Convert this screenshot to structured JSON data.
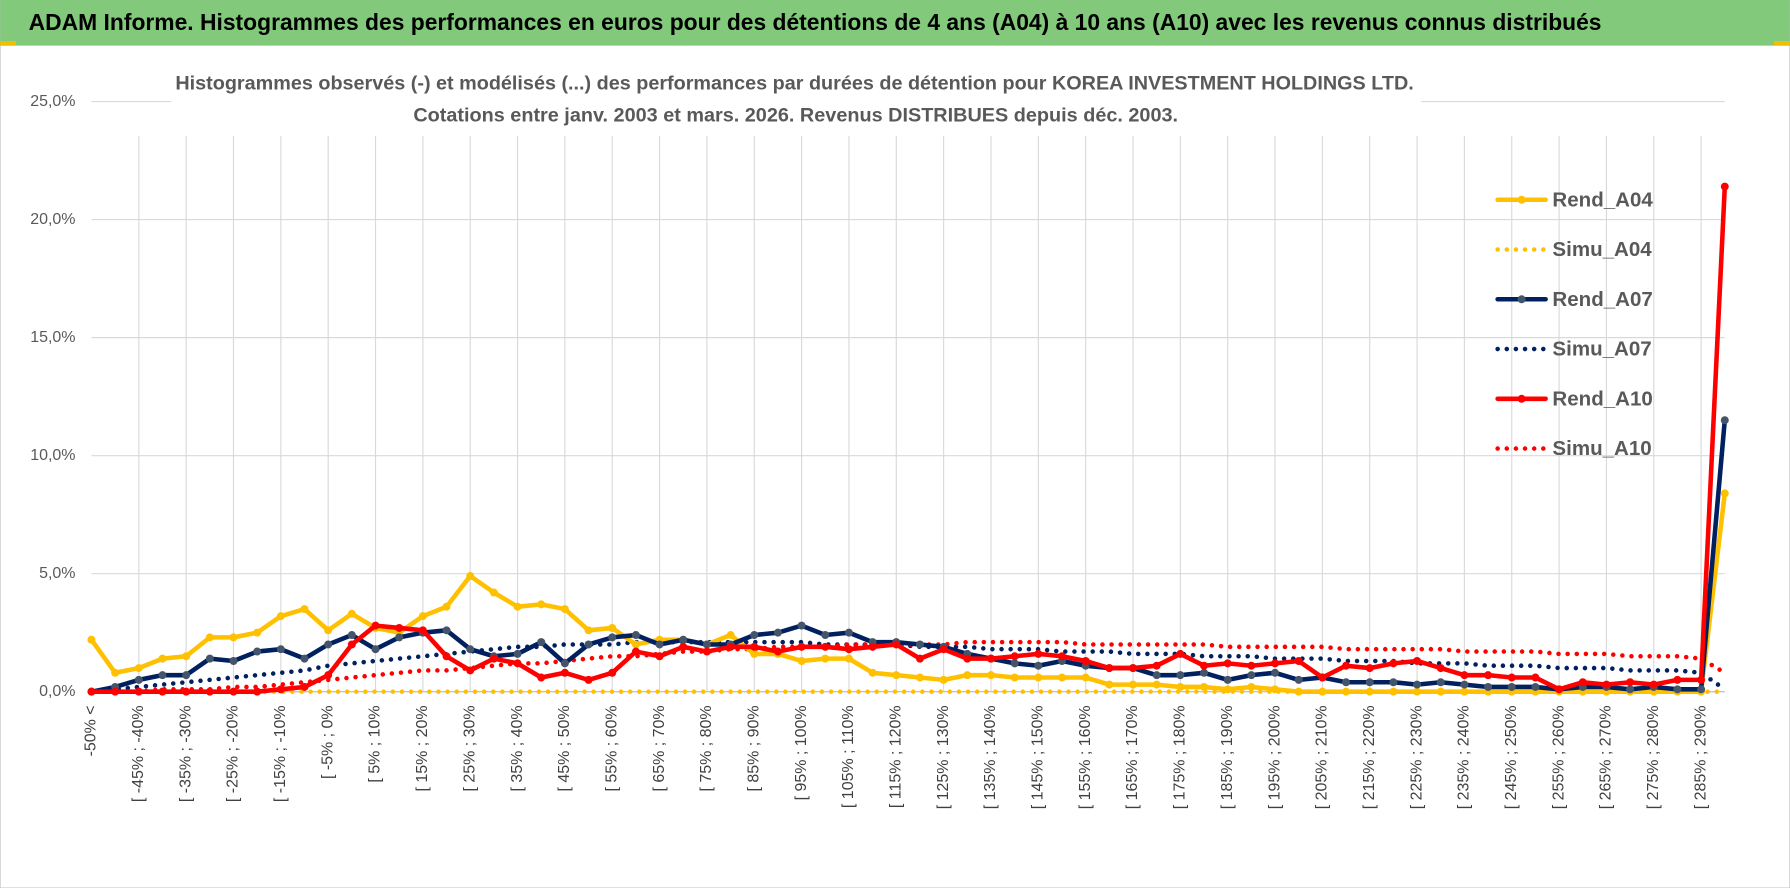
{
  "header": {
    "title": "ADAM Informe. Histogrammes des performances en euros pour des détentions de 4 ans (A04) à 10 ans (A10) avec les revenus connus distribués"
  },
  "chart_data": {
    "type": "line",
    "title": "Histogrammes observés (-) et modélisés (...) des performances par durées de détention pour KOREA INVESTMENT HOLDINGS LTD.",
    "subtitle": "Cotations entre janv. 2003 et mars. 2026.  Revenus DISTRIBUES depuis déc. 2003.",
    "categories": [
      "-50% <",
      null,
      "[ -45% ; -40%",
      null,
      "[ -35% ; -30%",
      null,
      "[ -25% ; -20%",
      null,
      "[ -15% ; -10%",
      null,
      "[ -5% ; 0%",
      null,
      "[ 5% ; 10%",
      null,
      "[ 15% ; 20%",
      null,
      "[ 25% ; 30%",
      null,
      "[ 35% ; 40%",
      null,
      "[ 45% ; 50%",
      null,
      "[ 55% ; 60%",
      null,
      "[ 65% ; 70%",
      null,
      "[ 75% ; 80%",
      null,
      "[ 85% ; 90%",
      null,
      "[ 95% ; 100%",
      null,
      "[ 105% ; 110%",
      null,
      "[ 115% ; 120%",
      null,
      "[ 125% ; 130%",
      null,
      "[ 135% ; 140%",
      null,
      "[ 145% ; 150%",
      null,
      "[ 155% ; 160%",
      null,
      "[ 165% ; 170%",
      null,
      "[ 175% ; 180%",
      null,
      "[ 185% ; 190%",
      null,
      "[ 195% ; 200%",
      null,
      "[ 205% ; 210%",
      null,
      "[ 215% ; 220%",
      null,
      "[ 225% ; 230%",
      null,
      "[ 235% ; 240%",
      null,
      "[ 245% ; 250%",
      null,
      "[ 255% ; 260%",
      null,
      "[ 265% ; 270%",
      null,
      "[ 275% ; 280%",
      null,
      "[ 285% ; 290%",
      null
    ],
    "ylim": [
      0,
      25
    ],
    "yticks": [
      {
        "value": 0,
        "label": "0,0%"
      },
      {
        "value": 5,
        "label": "5,0%"
      },
      {
        "value": 10,
        "label": "10,0%"
      },
      {
        "value": 15,
        "label": "15,0%"
      },
      {
        "value": 20,
        "label": "20,0%"
      },
      {
        "value": 25,
        "label": "25,0%"
      }
    ],
    "grid": true,
    "legend": "right",
    "series": [
      {
        "name": "Rend_A04",
        "color": "#ffc000",
        "style": "solid",
        "markers": true,
        "values": [
          2.2,
          0.8,
          1.0,
          1.4,
          1.5,
          2.3,
          2.3,
          2.5,
          3.2,
          3.5,
          2.6,
          3.3,
          2.7,
          2.5,
          3.2,
          3.6,
          4.9,
          4.2,
          3.6,
          3.7,
          3.5,
          2.6,
          2.7,
          2.0,
          2.2,
          2.2,
          2.0,
          2.4,
          1.6,
          1.6,
          1.3,
          1.4,
          1.4,
          0.8,
          0.7,
          0.6,
          0.5,
          0.7,
          0.7,
          0.6,
          0.6,
          0.6,
          0.6,
          0.3,
          0.3,
          0.3,
          0.2,
          0.2,
          0.1,
          0.2,
          0.1,
          0,
          0,
          0,
          0,
          0,
          0,
          0,
          0,
          0,
          0,
          0,
          0,
          0,
          0,
          0,
          0,
          0,
          0,
          8.4
        ]
      },
      {
        "name": "Simu_A04",
        "color": "#ffc000",
        "style": "dotted",
        "markers": false,
        "values": [
          0,
          0,
          0,
          0,
          0,
          0,
          0,
          0,
          0,
          0,
          0,
          0,
          0,
          0,
          0,
          0,
          0,
          0,
          0,
          0,
          0,
          0,
          0,
          0,
          0,
          0,
          0,
          0,
          0,
          0,
          0,
          0,
          0,
          0,
          0,
          0,
          0,
          0,
          0,
          0,
          0,
          0,
          0,
          0,
          0,
          0,
          0,
          0,
          0,
          0,
          0,
          0,
          0,
          0,
          0,
          0,
          0,
          0,
          0,
          0,
          0,
          0,
          0,
          0,
          0,
          0,
          0,
          0,
          0,
          0
        ]
      },
      {
        "name": "Rend_A07",
        "color": "#002060",
        "style": "solid",
        "markers": true,
        "values": [
          0,
          0.2,
          0.5,
          0.7,
          0.7,
          1.4,
          1.3,
          1.7,
          1.8,
          1.4,
          2.0,
          2.4,
          1.8,
          2.3,
          2.5,
          2.6,
          1.8,
          1.5,
          1.6,
          2.1,
          1.2,
          2.0,
          2.3,
          2.4,
          2.0,
          2.2,
          2.0,
          2.0,
          2.4,
          2.5,
          2.8,
          2.4,
          2.5,
          2.1,
          2.1,
          2.0,
          1.9,
          1.6,
          1.4,
          1.2,
          1.1,
          1.3,
          1.1,
          1.0,
          1.0,
          0.7,
          0.7,
          0.8,
          0.5,
          0.7,
          0.8,
          0.5,
          0.6,
          0.4,
          0.4,
          0.4,
          0.3,
          0.4,
          0.3,
          0.2,
          0.2,
          0.2,
          0.1,
          0.2,
          0.2,
          0.1,
          0.2,
          0.1,
          0.1,
          11.5
        ]
      },
      {
        "name": "Simu_A07",
        "color": "#002060",
        "style": "dotted",
        "markers": false,
        "values": [
          0,
          0.1,
          0.2,
          0.3,
          0.4,
          0.5,
          0.6,
          0.7,
          0.8,
          0.9,
          1.1,
          1.2,
          1.3,
          1.4,
          1.5,
          1.6,
          1.7,
          1.8,
          1.9,
          1.9,
          2.0,
          2.0,
          2.0,
          2.1,
          2.1,
          2.1,
          2.1,
          2.1,
          2.1,
          2.1,
          2.1,
          2.0,
          2.0,
          2.0,
          2.0,
          1.9,
          1.9,
          1.9,
          1.8,
          1.8,
          1.8,
          1.7,
          1.7,
          1.7,
          1.6,
          1.6,
          1.6,
          1.5,
          1.5,
          1.5,
          1.4,
          1.4,
          1.4,
          1.3,
          1.3,
          1.3,
          1.2,
          1.2,
          1.2,
          1.1,
          1.1,
          1.1,
          1.0,
          1.0,
          1.0,
          0.9,
          0.9,
          0.9,
          0.8,
          0.1
        ]
      },
      {
        "name": "Rend_A10",
        "color": "#ff0000",
        "style": "solid",
        "markers": true,
        "values": [
          0,
          0,
          0,
          0,
          0,
          0,
          0,
          0,
          0.1,
          0.2,
          0.7,
          2.0,
          2.8,
          2.7,
          2.6,
          1.5,
          0.9,
          1.4,
          1.2,
          0.6,
          0.8,
          0.5,
          0.8,
          1.7,
          1.5,
          1.9,
          1.7,
          1.9,
          1.9,
          1.7,
          1.9,
          1.9,
          1.8,
          1.9,
          2.0,
          1.4,
          1.8,
          1.4,
          1.4,
          1.5,
          1.6,
          1.5,
          1.3,
          1.0,
          1.0,
          1.1,
          1.6,
          1.1,
          1.2,
          1.1,
          1.2,
          1.3,
          0.6,
          1.1,
          1.0,
          1.2,
          1.3,
          1.0,
          0.7,
          0.7,
          0.6,
          0.6,
          0.1,
          0.4,
          0.3,
          0.4,
          0.3,
          0.5,
          0.5,
          21.4
        ]
      },
      {
        "name": "Simu_A10",
        "color": "#ff0000",
        "style": "dotted",
        "markers": false,
        "values": [
          0,
          0,
          0,
          0.1,
          0.1,
          0.1,
          0.2,
          0.2,
          0.3,
          0.4,
          0.5,
          0.6,
          0.7,
          0.8,
          0.9,
          0.9,
          1.0,
          1.1,
          1.2,
          1.2,
          1.3,
          1.4,
          1.5,
          1.5,
          1.6,
          1.7,
          1.7,
          1.8,
          1.8,
          1.9,
          1.9,
          1.9,
          2.0,
          2.0,
          2.0,
          2.0,
          2.0,
          2.1,
          2.1,
          2.1,
          2.1,
          2.1,
          2.0,
          2.0,
          2.0,
          2.0,
          2.0,
          2.0,
          1.9,
          1.9,
          1.9,
          1.9,
          1.9,
          1.8,
          1.8,
          1.8,
          1.8,
          1.8,
          1.7,
          1.7,
          1.7,
          1.7,
          1.6,
          1.6,
          1.6,
          1.5,
          1.5,
          1.5,
          1.4,
          0.8
        ]
      }
    ]
  }
}
